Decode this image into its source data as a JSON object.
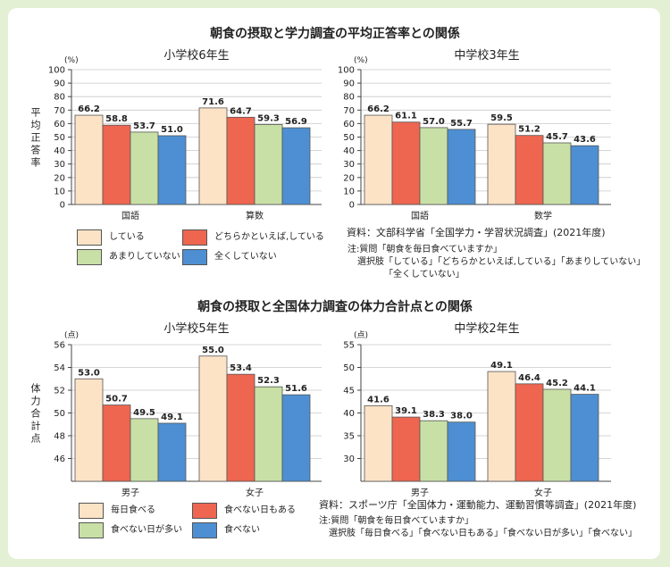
{
  "section1_title": "朝食の摂取と学力調査の平均正答率との関係",
  "section2_title": "朝食の摂取と全国体力調査の体力合計点との関係",
  "colors": {
    "c1": "#fde3c6",
    "c2": "#ee6650",
    "c3": "#c8e0a6",
    "c4": "#4d8fd2"
  },
  "chart_data": [
    {
      "type": "bar",
      "title": "小学校6年生",
      "unit": "(%)",
      "ylabel": "平均正答率",
      "ylim": [
        0,
        100
      ],
      "yticks": [
        0,
        10,
        20,
        30,
        40,
        50,
        60,
        70,
        80,
        90,
        100
      ],
      "categories": [
        "国語",
        "算数"
      ],
      "series": [
        {
          "name": "している",
          "values": [
            66.2,
            71.6
          ]
        },
        {
          "name": "どちらかといえば,している",
          "values": [
            58.8,
            64.7
          ]
        },
        {
          "name": "あまりしていない",
          "values": [
            53.7,
            59.3
          ]
        },
        {
          "name": "全くしていない",
          "values": [
            51.0,
            56.9
          ]
        }
      ]
    },
    {
      "type": "bar",
      "title": "中学校3年生",
      "unit": "(%)",
      "ylim": [
        0,
        100
      ],
      "yticks": [
        0,
        10,
        20,
        30,
        40,
        50,
        60,
        70,
        80,
        90,
        100
      ],
      "categories": [
        "国語",
        "数学"
      ],
      "series": [
        {
          "name": "している",
          "values": [
            66.2,
            59.5
          ]
        },
        {
          "name": "どちらかといえば,している",
          "values": [
            61.1,
            51.2
          ]
        },
        {
          "name": "あまりしていない",
          "values": [
            57.0,
            45.7
          ]
        },
        {
          "name": "全くしていない",
          "values": [
            55.7,
            43.6
          ]
        }
      ]
    },
    {
      "type": "bar",
      "title": "小学校5年生",
      "unit": "(点)",
      "ylabel": "体力合計点",
      "ylim": [
        44,
        56
      ],
      "yticks": [
        46,
        48,
        50,
        52,
        54,
        56
      ],
      "categories": [
        "男子",
        "女子"
      ],
      "series": [
        {
          "name": "毎日食べる",
          "values": [
            53.0,
            55.0
          ]
        },
        {
          "name": "食べない日もある",
          "values": [
            50.7,
            53.4
          ]
        },
        {
          "name": "食べない日が多い",
          "values": [
            49.5,
            52.3
          ]
        },
        {
          "name": "食べない",
          "values": [
            49.1,
            51.6
          ]
        }
      ]
    },
    {
      "type": "bar",
      "title": "中学校2年生",
      "unit": "(点)",
      "ylim": [
        25,
        55
      ],
      "yticks": [
        30,
        35,
        40,
        45,
        50,
        55
      ],
      "categories": [
        "男子",
        "女子"
      ],
      "series": [
        {
          "name": "毎日食べる",
          "values": [
            41.6,
            49.1
          ]
        },
        {
          "name": "食べない日もある",
          "values": [
            39.1,
            46.4
          ]
        },
        {
          "name": "食べない日が多い",
          "values": [
            38.3,
            45.2
          ]
        },
        {
          "name": "食べない",
          "values": [
            38.0,
            44.1
          ]
        }
      ]
    }
  ],
  "legend1": [
    "している",
    "どちらかといえば,している",
    "あまりしていない",
    "全くしていない"
  ],
  "legend2": [
    "毎日食べる",
    "食べない日もある",
    "食べない日が多い",
    "食べない"
  ],
  "note1": {
    "source": "資料：文部科学省「全国学力・学習状況調査」(2021年度)",
    "q": "注:質問「朝食を毎日食べていますか」",
    "opts1": "選択肢「している」「どちらかといえば,している」「あまりしていない」",
    "opts2": "「全くしていない」"
  },
  "note2": {
    "source": "資料：スポーツ庁「全国体力・運動能力、運動習慣等調査」(2021年度)",
    "q": "注:質問「朝食を毎日食べていますか」",
    "opts1": "選択肢「毎日食べる」「食べない日もある」「食べない日が多い」「食べない」"
  }
}
